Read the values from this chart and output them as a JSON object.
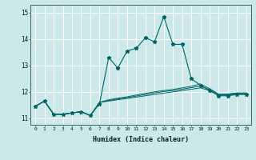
{
  "title": "",
  "xlabel": "Humidex (Indice chaleur)",
  "ylabel": "",
  "bg_color": "#cce8e8",
  "grid_color": "#ffffff",
  "line_color": "#006666",
  "xlim": [
    -0.5,
    23.5
  ],
  "ylim": [
    10.75,
    15.3
  ],
  "xticks": [
    0,
    1,
    2,
    3,
    4,
    5,
    6,
    7,
    8,
    9,
    10,
    11,
    12,
    13,
    14,
    15,
    16,
    17,
    18,
    19,
    20,
    21,
    22,
    23
  ],
  "yticks": [
    11,
    12,
    13,
    14,
    15
  ],
  "y_main": [
    11.45,
    11.65,
    11.15,
    11.15,
    11.2,
    11.25,
    11.1,
    11.55,
    13.3,
    12.9,
    13.55,
    13.65,
    14.05,
    13.9,
    14.85,
    13.8,
    13.8,
    12.5,
    12.25,
    12.05,
    11.85,
    11.85,
    11.9,
    11.9
  ],
  "y_flat1": [
    11.45,
    11.65,
    11.15,
    11.15,
    11.2,
    11.25,
    11.1,
    11.6,
    11.65,
    11.7,
    11.75,
    11.8,
    11.85,
    11.9,
    11.95,
    12.0,
    12.05,
    12.1,
    12.15,
    12.05,
    11.87,
    11.88,
    11.92,
    11.92
  ],
  "y_flat2": [
    11.45,
    11.65,
    11.15,
    11.15,
    11.2,
    11.25,
    11.1,
    11.6,
    11.67,
    11.73,
    11.78,
    11.84,
    11.9,
    11.96,
    12.01,
    12.05,
    12.1,
    12.16,
    12.22,
    12.08,
    11.89,
    11.9,
    11.94,
    11.94
  ],
  "y_flat3": [
    11.45,
    11.65,
    11.15,
    11.15,
    11.2,
    11.25,
    11.1,
    11.6,
    11.7,
    11.76,
    11.81,
    11.88,
    11.94,
    12.0,
    12.05,
    12.09,
    12.15,
    12.21,
    12.3,
    12.12,
    11.91,
    11.92,
    11.96,
    11.96
  ]
}
